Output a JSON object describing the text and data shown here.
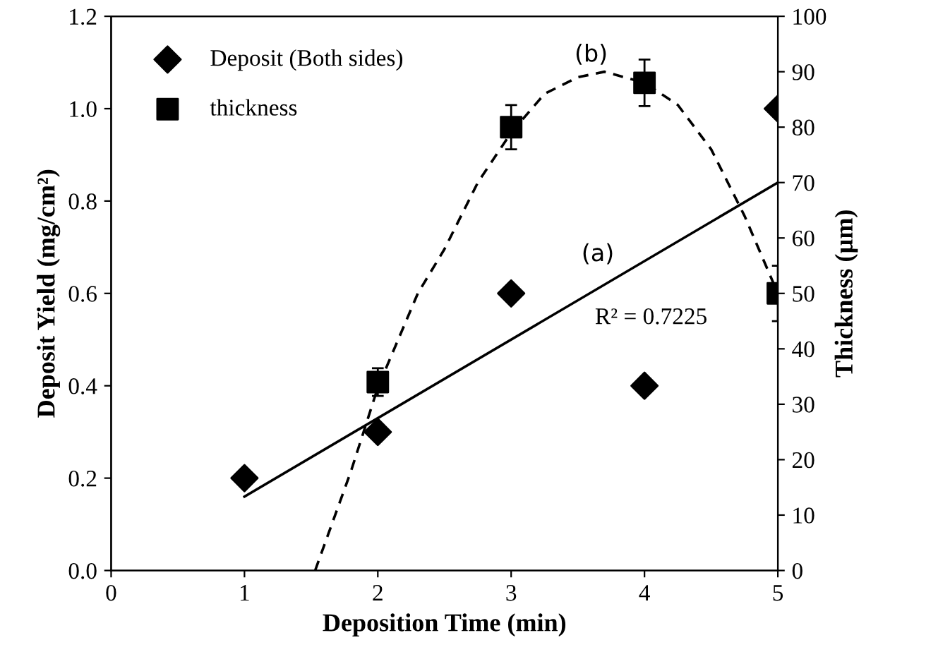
{
  "chart_data": {
    "type": "scatter",
    "xlabel": "Deposition Time (min)",
    "ylabel": "Deposit Yield (mg/cm²)",
    "y2label": "Thickness (µm)",
    "xlim": [
      0,
      5
    ],
    "xticks": [
      0,
      1,
      2,
      3,
      4,
      5
    ],
    "ylim": [
      0,
      1.2
    ],
    "yticks": [
      {
        "value": 0,
        "label": "0.0"
      },
      0.2,
      0.4,
      0.6,
      0.8,
      {
        "value": 1,
        "label": "1.0"
      },
      1.2
    ],
    "y2lim": [
      0,
      100
    ],
    "y2ticks": [
      0,
      10,
      20,
      30,
      40,
      50,
      60,
      70,
      80,
      90,
      100
    ],
    "grid": false,
    "legend": "top left",
    "series": [
      {
        "name": "Deposit (Both sides)",
        "marker": "diamond",
        "color": "#000000",
        "x": [
          1,
          2,
          3,
          4,
          5
        ],
        "values": [
          0.2,
          0.3,
          0.6,
          0.4,
          1.0
        ]
      },
      {
        "name": "thickness",
        "marker": "square",
        "color": "#000000",
        "axis": "y2",
        "x": [
          2,
          3,
          4,
          5
        ],
        "values": [
          34,
          80,
          88,
          50
        ],
        "errors": [
          2.5,
          4,
          4.2,
          5
        ]
      },
      {
        "type": "line",
        "line_style": "solid",
        "color": "#000000",
        "x": [
          1,
          5
        ],
        "values": [
          0.16,
          0.84
        ]
      },
      {
        "type": "line",
        "line_style": "dashed",
        "color": "#000000",
        "axis": "y2",
        "x": [
          1.53,
          1.8,
          2,
          2.3,
          2.5,
          2.75,
          3,
          3.25,
          3.5,
          3.7,
          4,
          4.25,
          4.5,
          4.75,
          5
        ],
        "values": [
          0,
          18,
          33,
          50,
          58,
          70,
          79,
          86,
          89,
          90,
          88,
          84,
          76,
          64,
          50
        ]
      }
    ],
    "annotations": [
      "(a)",
      "(b)",
      "R² = 0.7225"
    ]
  }
}
